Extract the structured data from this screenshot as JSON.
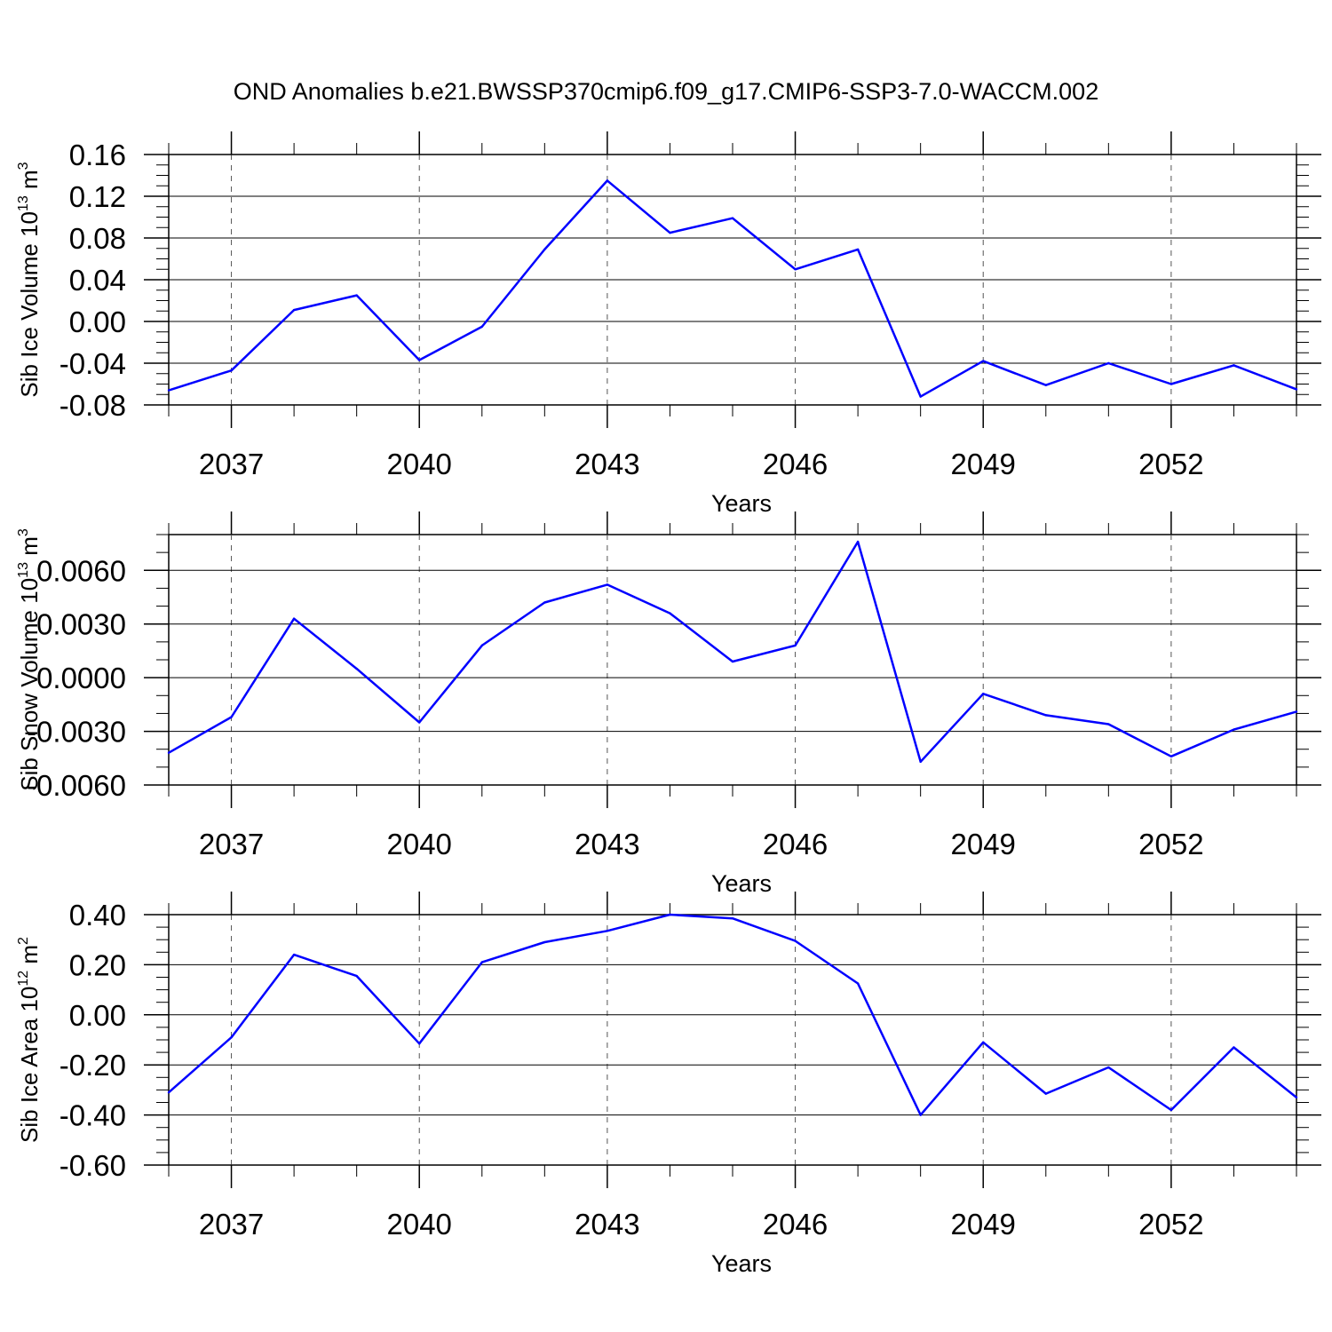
{
  "figure_title": "OND Anomalies b.e21.BWSSP370cmip6.f09_g17.CMIP6-SSP3-7.0-WACCM.002",
  "line_color": "#0000ff",
  "grid_color": "#555555",
  "chart_data": [
    {
      "type": "line",
      "xlabel": "Years",
      "ylabel_main": "Sib Ice Volume 10",
      "ylabel_sup": "13",
      "ylabel_unit": " m",
      "ylabel_unit_sup": "3",
      "xlim": [
        2036,
        2054
      ],
      "ylim": [
        -0.08,
        0.16
      ],
      "yticks": [
        0.16,
        0.12,
        0.08,
        0.04,
        0.0,
        -0.04,
        -0.08
      ],
      "ytick_labels": [
        "0.16",
        "0.12",
        "0.08",
        "0.04",
        "0.00",
        "-0.04",
        "-0.08"
      ],
      "ytick_minor_step": 0.01,
      "xticks": [
        2037,
        2040,
        2043,
        2046,
        2049,
        2052
      ],
      "xtick_labels": [
        "2037",
        "2040",
        "2043",
        "2046",
        "2049",
        "2052"
      ],
      "x": [
        2036,
        2037,
        2038,
        2039,
        2040,
        2041,
        2042,
        2043,
        2044,
        2045,
        2046,
        2047,
        2048,
        2049,
        2050,
        2051,
        2052,
        2053,
        2054
      ],
      "series": [
        {
          "name": "Sib Ice Volume",
          "values": [
            -0.066,
            -0.047,
            0.011,
            0.025,
            -0.037,
            -0.005,
            0.069,
            0.135,
            0.085,
            0.099,
            0.05,
            0.069,
            -0.072,
            -0.038,
            -0.061,
            -0.04,
            -0.06,
            -0.042,
            -0.065
          ]
        }
      ]
    },
    {
      "type": "line",
      "xlabel": "Years",
      "ylabel_main": "Sib Snow Volume 10",
      "ylabel_sup": "13",
      "ylabel_unit": " m",
      "ylabel_unit_sup": "3",
      "xlim": [
        2036,
        2054
      ],
      "ylim": [
        -0.006,
        0.008
      ],
      "yticks": [
        0.006,
        0.003,
        0.0,
        -0.003,
        -0.006
      ],
      "ytick_labels": [
        "0.0060",
        "0.0030",
        "0.0000",
        "-0.0030",
        "-0.0060"
      ],
      "ytick_minor_step": 0.001,
      "xticks": [
        2037,
        2040,
        2043,
        2046,
        2049,
        2052
      ],
      "xtick_labels": [
        "2037",
        "2040",
        "2043",
        "2046",
        "2049",
        "2052"
      ],
      "x": [
        2036,
        2037,
        2038,
        2039,
        2040,
        2041,
        2042,
        2043,
        2044,
        2045,
        2046,
        2047,
        2048,
        2049,
        2050,
        2051,
        2052,
        2053,
        2054
      ],
      "series": [
        {
          "name": "Sib Snow Volume",
          "values": [
            -0.0042,
            -0.0022,
            0.0033,
            0.0005,
            -0.0025,
            0.0018,
            0.0042,
            0.0052,
            0.0036,
            0.0009,
            0.0018,
            0.0076,
            -0.0047,
            -0.0009,
            -0.0021,
            -0.0026,
            -0.0044,
            -0.0029,
            -0.0019
          ]
        }
      ]
    },
    {
      "type": "line",
      "xlabel": "Years",
      "ylabel_main": "Sib Ice Area 10",
      "ylabel_sup": "12",
      "ylabel_unit": " m",
      "ylabel_unit_sup": "2",
      "xlim": [
        2036,
        2054
      ],
      "ylim": [
        -0.6,
        0.4
      ],
      "yticks": [
        0.4,
        0.2,
        0.0,
        -0.2,
        -0.4,
        -0.6
      ],
      "ytick_labels": [
        "0.40",
        "0.20",
        "0.00",
        "-0.20",
        "-0.40",
        "-0.60"
      ],
      "ytick_minor_step": 0.05,
      "xticks": [
        2037,
        2040,
        2043,
        2046,
        2049,
        2052
      ],
      "xtick_labels": [
        "2037",
        "2040",
        "2043",
        "2046",
        "2049",
        "2052"
      ],
      "x": [
        2036,
        2037,
        2038,
        2039,
        2040,
        2041,
        2042,
        2043,
        2044,
        2045,
        2046,
        2047,
        2048,
        2049,
        2050,
        2051,
        2052,
        2053,
        2054
      ],
      "series": [
        {
          "name": "Sib Ice Area",
          "values": [
            -0.31,
            -0.09,
            0.24,
            0.155,
            -0.115,
            0.21,
            0.29,
            0.335,
            0.4,
            0.385,
            0.295,
            0.125,
            -0.4,
            -0.11,
            -0.315,
            -0.21,
            -0.38,
            -0.13,
            -0.33
          ]
        }
      ]
    }
  ]
}
